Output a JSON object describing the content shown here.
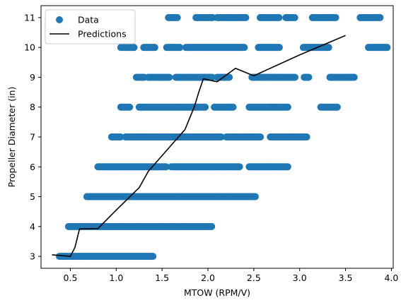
{
  "colors": {
    "data_marker": "#1f77b4",
    "prediction_line": "#000000",
    "axes": "#000000",
    "legend_border": "#cccccc"
  },
  "chart_data": {
    "type": "scatter",
    "title": "",
    "xlabel": "MTOW (RPM/V)",
    "ylabel": "Propeller Diameter (in)",
    "xlim": [
      0.18,
      4.02
    ],
    "ylim": [
      2.6,
      11.4
    ],
    "xticks": [
      0.5,
      1.0,
      1.5,
      2.0,
      2.5,
      3.0,
      3.5,
      4.0
    ],
    "xtick_labels": [
      "0.5",
      "1.0",
      "1.5",
      "2.0",
      "2.5",
      "3.0",
      "3.5",
      "4.0"
    ],
    "yticks": [
      3,
      4,
      5,
      6,
      7,
      8,
      9,
      10,
      11
    ],
    "ytick_labels": [
      "3",
      "4",
      "5",
      "6",
      "7",
      "8",
      "9",
      "10",
      "11"
    ],
    "grid": false,
    "legend": {
      "position": "top-left",
      "entries": [
        {
          "label": "Data",
          "marker": "circle"
        },
        {
          "label": "Predictions",
          "marker": "line"
        }
      ]
    },
    "series": [
      {
        "name": "Data",
        "kind": "scatter",
        "segments": [
          {
            "y": 3,
            "x_ranges": [
              [
                0.38,
                1.4
              ]
            ]
          },
          {
            "y": 4,
            "x_ranges": [
              [
                0.48,
                2.04
              ]
            ]
          },
          {
            "y": 5,
            "x_ranges": [
              [
                0.68,
                2.52
              ]
            ]
          },
          {
            "y": 6,
            "x_ranges": [
              [
                0.8,
                1.55
              ],
              [
                1.6,
                2.35
              ],
              [
                2.45,
                2.88
              ]
            ]
          },
          {
            "y": 7,
            "x_ranges": [
              [
                0.95,
                1.05
              ],
              [
                1.1,
                2.15
              ],
              [
                2.2,
                2.58
              ],
              [
                2.68,
                3.08
              ]
            ]
          },
          {
            "y": 8,
            "x_ranges": [
              [
                1.05,
                1.15
              ],
              [
                1.25,
                1.97
              ],
              [
                2.07,
                2.28
              ],
              [
                2.45,
                2.88
              ],
              [
                3.23,
                3.42
              ]
            ]
          },
          {
            "y": 9,
            "x_ranges": [
              [
                1.22,
                1.31
              ],
              [
                1.35,
                1.58
              ],
              [
                1.65,
                2.05
              ],
              [
                2.1,
                2.24
              ],
              [
                2.48,
                2.95
              ],
              [
                3.05,
                3.1
              ],
              [
                3.33,
                3.6
              ]
            ]
          },
          {
            "y": 10,
            "x_ranges": [
              [
                1.05,
                1.2
              ],
              [
                1.3,
                1.42
              ],
              [
                1.55,
                1.7
              ],
              [
                1.76,
                2.4
              ],
              [
                2.55,
                2.78
              ],
              [
                3.04,
                3.32
              ],
              [
                3.75,
                3.96
              ]
            ]
          },
          {
            "y": 11,
            "x_ranges": [
              [
                1.57,
                1.67
              ],
              [
                1.87,
                2.05
              ],
              [
                2.1,
                2.42
              ],
              [
                2.57,
                2.78
              ],
              [
                2.85,
                2.95
              ],
              [
                3.14,
                3.4
              ],
              [
                3.66,
                3.88
              ]
            ]
          }
        ]
      },
      {
        "name": "Predictions",
        "kind": "line",
        "x": [
          0.3,
          0.5,
          0.55,
          0.6,
          0.8,
          1.0,
          1.25,
          1.35,
          1.55,
          1.75,
          1.85,
          1.9,
          1.95,
          2.1,
          2.3,
          2.5,
          3.0,
          3.5
        ],
        "y": [
          3.05,
          3.0,
          3.3,
          3.92,
          3.93,
          4.55,
          5.3,
          5.85,
          6.55,
          7.25,
          8.0,
          8.5,
          8.95,
          8.85,
          9.3,
          9.05,
          9.75,
          10.4
        ]
      }
    ]
  }
}
